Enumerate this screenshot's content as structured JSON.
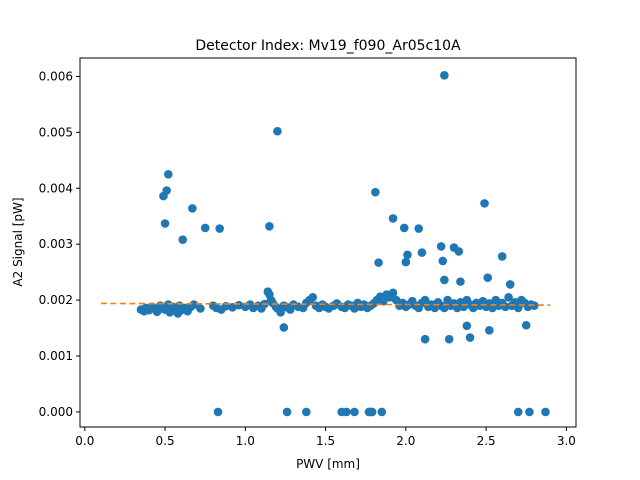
{
  "chart_data": {
    "type": "scatter",
    "title": "Detector Index: Mv19_f090_Ar05c10A",
    "xlabel": "PWV [mm]",
    "ylabel": "A2 Signal [pW]",
    "xlim": [
      -0.03,
      3.06
    ],
    "ylim": [
      -0.00027,
      0.00633
    ],
    "x_ticks": [
      0.0,
      0.5,
      1.0,
      1.5,
      2.0,
      2.5,
      3.0
    ],
    "x_tick_labels": [
      "0.0",
      "0.5",
      "1.0",
      "1.5",
      "2.0",
      "2.5",
      "3.0"
    ],
    "y_ticks": [
      0.0,
      0.001,
      0.002,
      0.003,
      0.004,
      0.005,
      0.006
    ],
    "y_tick_labels": [
      "0.000",
      "0.001",
      "0.002",
      "0.003",
      "0.004",
      "0.005",
      "0.006"
    ],
    "colors": {
      "points": "#1f77b4",
      "fit": "#ff7f0e"
    },
    "series": [
      {
        "name": "data",
        "kind": "scatter",
        "points": [
          [
            0.35,
            0.00183
          ],
          [
            0.37,
            0.0018
          ],
          [
            0.38,
            0.00186
          ],
          [
            0.4,
            0.00182
          ],
          [
            0.42,
            0.00188
          ],
          [
            0.44,
            0.00184
          ],
          [
            0.45,
            0.00179
          ],
          [
            0.47,
            0.0019
          ],
          [
            0.48,
            0.00185
          ],
          [
            0.5,
            0.00183
          ],
          [
            0.52,
            0.00192
          ],
          [
            0.53,
            0.00178
          ],
          [
            0.55,
            0.00188
          ],
          [
            0.56,
            0.00184
          ],
          [
            0.58,
            0.00176
          ],
          [
            0.59,
            0.0019
          ],
          [
            0.6,
            0.00182
          ],
          [
            0.62,
            0.00186
          ],
          [
            0.64,
            0.0018
          ],
          [
            0.66,
            0.00188
          ],
          [
            0.68,
            0.00192
          ],
          [
            0.72,
            0.00185
          ],
          [
            0.8,
            0.0019
          ],
          [
            0.82,
            0.00186
          ],
          [
            0.85,
            0.00183
          ],
          [
            0.88,
            0.00189
          ],
          [
            0.92,
            0.00187
          ],
          [
            0.96,
            0.00191
          ],
          [
            1.0,
            0.00188
          ],
          [
            1.03,
            0.00192
          ],
          [
            1.05,
            0.00186
          ],
          [
            1.08,
            0.0019
          ],
          [
            1.1,
            0.00185
          ],
          [
            1.12,
            0.00193
          ],
          [
            1.14,
            0.00215
          ],
          [
            1.15,
            0.0021
          ],
          [
            1.16,
            0.002
          ],
          [
            1.17,
            0.00195
          ],
          [
            1.19,
            0.00188
          ],
          [
            1.2,
            0.00185
          ],
          [
            1.22,
            0.00178
          ],
          [
            1.24,
            0.0019
          ],
          [
            1.26,
            0.00187
          ],
          [
            1.28,
            0.00183
          ],
          [
            1.3,
            0.00192
          ],
          [
            1.33,
            0.00188
          ],
          [
            1.36,
            0.00186
          ],
          [
            1.38,
            0.00195
          ],
          [
            1.4,
            0.002
          ],
          [
            1.42,
            0.00205
          ],
          [
            1.44,
            0.0019
          ],
          [
            1.46,
            0.00186
          ],
          [
            1.48,
            0.00192
          ],
          [
            1.5,
            0.00188
          ],
          [
            1.52,
            0.00185
          ],
          [
            1.55,
            0.0019
          ],
          [
            1.57,
            0.00194
          ],
          [
            1.6,
            0.00188
          ],
          [
            1.62,
            0.00186
          ],
          [
            1.64,
            0.00192
          ],
          [
            1.66,
            0.0019
          ],
          [
            1.68,
            0.00185
          ],
          [
            1.7,
            0.00195
          ],
          [
            1.72,
            0.00188
          ],
          [
            1.74,
            0.00192
          ],
          [
            1.76,
            0.00186
          ],
          [
            1.78,
            0.0019
          ],
          [
            1.8,
            0.00194
          ],
          [
            1.82,
            0.002
          ],
          [
            1.84,
            0.00206
          ],
          [
            1.86,
            0.00198
          ],
          [
            1.88,
            0.0021
          ],
          [
            1.9,
            0.00205
          ],
          [
            1.92,
            0.00213
          ],
          [
            1.94,
            0.002
          ],
          [
            1.96,
            0.0019
          ],
          [
            1.98,
            0.00195
          ],
          [
            2.0,
            0.00188
          ],
          [
            2.02,
            0.00192
          ],
          [
            2.04,
            0.00198
          ],
          [
            2.06,
            0.0019
          ],
          [
            2.08,
            0.00186
          ],
          [
            2.1,
            0.00195
          ],
          [
            2.12,
            0.002
          ],
          [
            2.14,
            0.00188
          ],
          [
            2.16,
            0.00192
          ],
          [
            2.18,
            0.00186
          ],
          [
            2.2,
            0.00196
          ],
          [
            2.22,
            0.0019
          ],
          [
            2.24,
            0.00186
          ],
          [
            2.26,
            0.002
          ],
          [
            2.28,
            0.0019
          ],
          [
            2.3,
            0.00194
          ],
          [
            2.32,
            0.00186
          ],
          [
            2.34,
            0.00196
          ],
          [
            2.36,
            0.00188
          ],
          [
            2.38,
            0.002
          ],
          [
            2.4,
            0.00192
          ],
          [
            2.42,
            0.00186
          ],
          [
            2.44,
            0.00195
          ],
          [
            2.46,
            0.0019
          ],
          [
            2.48,
            0.00198
          ],
          [
            2.5,
            0.00188
          ],
          [
            2.52,
            0.00194
          ],
          [
            2.54,
            0.00186
          ],
          [
            2.56,
            0.002
          ],
          [
            2.58,
            0.0019
          ],
          [
            2.6,
            0.00195
          ],
          [
            2.62,
            0.00188
          ],
          [
            2.64,
            0.00205
          ],
          [
            2.66,
            0.0019
          ],
          [
            2.68,
            0.00196
          ],
          [
            2.7,
            0.00186
          ],
          [
            2.72,
            0.002
          ],
          [
            2.74,
            0.00195
          ],
          [
            2.76,
            0.00188
          ],
          [
            2.78,
            0.00192
          ],
          [
            2.8,
            0.0019
          ],
          [
            0.49,
            0.00386
          ],
          [
            0.51,
            0.00396
          ],
          [
            0.52,
            0.00425
          ],
          [
            0.5,
            0.00337
          ],
          [
            0.61,
            0.00308
          ],
          [
            0.67,
            0.00364
          ],
          [
            0.75,
            0.00329
          ],
          [
            0.84,
            0.00328
          ],
          [
            1.15,
            0.00332
          ],
          [
            1.2,
            0.00502
          ],
          [
            1.24,
            0.00151
          ],
          [
            1.81,
            0.00393
          ],
          [
            1.83,
            0.00267
          ],
          [
            1.92,
            0.00346
          ],
          [
            1.99,
            0.00329
          ],
          [
            2.0,
            0.00268
          ],
          [
            2.01,
            0.00281
          ],
          [
            2.08,
            0.00328
          ],
          [
            2.1,
            0.00285
          ],
          [
            2.12,
            0.0013
          ],
          [
            2.22,
            0.00296
          ],
          [
            2.23,
            0.0027
          ],
          [
            2.24,
            0.00236
          ],
          [
            2.24,
            0.00602
          ],
          [
            2.27,
            0.0013
          ],
          [
            2.3,
            0.00294
          ],
          [
            2.33,
            0.00287
          ],
          [
            2.34,
            0.00233
          ],
          [
            2.38,
            0.00154
          ],
          [
            2.4,
            0.00133
          ],
          [
            2.49,
            0.00373
          ],
          [
            2.51,
            0.0024
          ],
          [
            2.52,
            0.00146
          ],
          [
            2.6,
            0.00278
          ],
          [
            2.65,
            0.00228
          ],
          [
            2.75,
            0.00155
          ],
          [
            0.83,
            0.0
          ],
          [
            1.26,
            0.0
          ],
          [
            1.38,
            0.0
          ],
          [
            1.6,
            0.0
          ],
          [
            1.63,
            0.0
          ],
          [
            1.68,
            0.0
          ],
          [
            1.77,
            0.0
          ],
          [
            1.78,
            0.0
          ],
          [
            1.79,
            0.0
          ],
          [
            1.85,
            0.0
          ],
          [
            2.7,
            0.0
          ],
          [
            2.77,
            0.0
          ],
          [
            2.87,
            0.0
          ]
        ]
      },
      {
        "name": "fit",
        "kind": "line",
        "style": "dashed",
        "x": [
          0.1,
          2.9
        ],
        "y": [
          0.00194,
          0.00191
        ]
      }
    ]
  }
}
